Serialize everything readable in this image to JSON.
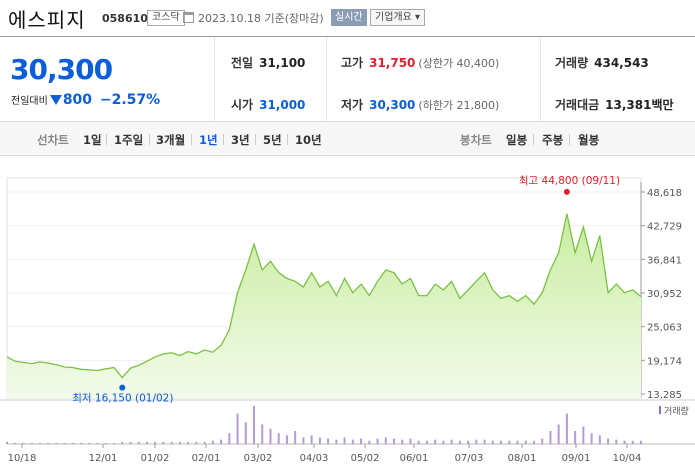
{
  "header": {
    "name": "에스피지",
    "code": "058610",
    "market": "코스닥",
    "date": "2023.10.18  기준(장마감)",
    "realtime_label": "실시간",
    "company_label": "기업개요 ▾"
  },
  "price": {
    "current": "30,300",
    "diff_label": "전일대비",
    "diff_value": "800",
    "diff_rate": "−2.57%",
    "direction": "down"
  },
  "stats": {
    "prev_close": {
      "label": "전일",
      "value": "31,100"
    },
    "high": {
      "label": "고가",
      "value": "31,750",
      "sub": "(상한가 40,400)"
    },
    "volume": {
      "label": "거래량",
      "value": "434,543"
    },
    "open": {
      "label": "시가",
      "value": "31,000"
    },
    "low": {
      "label": "저가",
      "value": "30,300",
      "sub": "(하한가 21,800)"
    },
    "amount": {
      "label": "거래대금",
      "value": "13,381",
      "unit": "백만"
    }
  },
  "periods": {
    "line_label": "선차트",
    "line_items": [
      "1일",
      "1주일",
      "3개월",
      "1년",
      "3년",
      "5년",
      "10년"
    ],
    "active": "1년",
    "candle_label": "봉차트",
    "candle_items": [
      "일봉",
      "주봉",
      "월봉"
    ]
  },
  "colors": {
    "up": "#e0202d",
    "down": "#0b5ed7",
    "line": "#7ac142",
    "fill": "#dff3c8"
  },
  "chart_data": {
    "type": "area",
    "ylim": [
      13285,
      48618
    ],
    "y_ticks": [
      "48,618",
      "42,729",
      "36,841",
      "30,952",
      "25,063",
      "19,174",
      "13,285"
    ],
    "x_ticks": [
      "10/18",
      "12/01",
      "01/02",
      "02/01",
      "03/02",
      "04/03",
      "05/02",
      "06/01",
      "07/03",
      "08/01",
      "09/01",
      "10/04"
    ],
    "max_label": "최고 44,800 (09/11)",
    "min_label": "최저 16,150 (01/02)",
    "volume_legend": "거래량",
    "x": [
      "10/18",
      "10/21",
      "10/26",
      "11/01",
      "11/07",
      "11/14",
      "11/21",
      "11/28",
      "12/01",
      "12/06",
      "12/12",
      "12/19",
      "12/23",
      "12/28",
      "01/02",
      "01/06",
      "01/11",
      "01/16",
      "01/20",
      "01/26",
      "02/01",
      "02/06",
      "02/10",
      "02/15",
      "02/20",
      "02/24",
      "03/02",
      "03/06",
      "03/09",
      "03/14",
      "03/17",
      "03/21",
      "03/24",
      "03/29",
      "04/03",
      "04/06",
      "04/11",
      "04/14",
      "04/19",
      "04/24",
      "04/27",
      "05/02",
      "05/08",
      "05/12",
      "05/17",
      "05/22",
      "05/26",
      "06/01",
      "06/07",
      "06/13",
      "06/16",
      "06/21",
      "06/27",
      "07/03",
      "07/07",
      "07/12",
      "07/17",
      "07/21",
      "07/27",
      "08/01",
      "08/04",
      "08/10",
      "08/16",
      "08/22",
      "08/28",
      "09/01",
      "09/05",
      "09/08",
      "09/11",
      "09/14",
      "09/19",
      "09/22",
      "09/26",
      "10/04",
      "10/06",
      "10/11",
      "10/13",
      "10/18"
    ],
    "values": [
      19800,
      19000,
      18800,
      18600,
      18900,
      18700,
      18400,
      18000,
      17900,
      17600,
      17500,
      17400,
      17700,
      17900,
      16150,
      17800,
      18300,
      19000,
      19800,
      20300,
      20500,
      20000,
      20700,
      20300,
      21000,
      20600,
      21800,
      24500,
      31000,
      35000,
      39500,
      35000,
      36500,
      34500,
      33500,
      33000,
      32000,
      34500,
      32000,
      33000,
      30500,
      33500,
      31000,
      32500,
      30500,
      33000,
      35000,
      34500,
      32500,
      33500,
      30500,
      30500,
      32500,
      31500,
      33000,
      30000,
      31500,
      33000,
      34500,
      31500,
      30000,
      30500,
      29500,
      30500,
      29000,
      31000,
      35000,
      38000,
      44800,
      38000,
      42500,
      36500,
      41000,
      31000,
      32500,
      31000,
      31500,
      30300
    ],
    "volume": [
      2,
      1,
      1,
      1,
      1,
      1,
      1,
      1,
      1,
      1,
      1,
      1,
      1,
      1,
      2,
      2,
      2,
      2,
      2,
      2,
      2,
      2,
      2,
      2,
      2,
      3,
      4,
      10,
      28,
      20,
      35,
      18,
      14,
      10,
      8,
      12,
      6,
      8,
      6,
      5,
      4,
      6,
      4,
      5,
      3,
      5,
      6,
      5,
      4,
      5,
      3,
      3,
      4,
      3,
      4,
      3,
      3,
      4,
      4,
      3,
      3,
      3,
      3,
      3,
      3,
      5,
      12,
      18,
      28,
      12,
      16,
      10,
      8,
      5,
      4,
      3,
      3,
      3
    ]
  }
}
